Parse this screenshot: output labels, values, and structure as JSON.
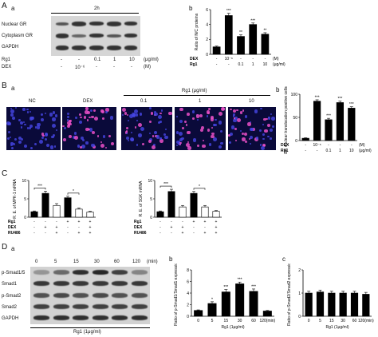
{
  "panelA": {
    "letter": "A",
    "sub_a": "a",
    "sub_b": "b",
    "time": "2h",
    "blot_rows": [
      "Nuclear GR",
      "Cytoplasm GR",
      "GAPDH"
    ],
    "rg1_label": "Rg1",
    "dex_label": "DEX",
    "rg1_vals": [
      "-",
      "-",
      "0.1",
      "1",
      "10"
    ],
    "rg1_unit": "(μg/ml)",
    "dex_vals": [
      "-",
      "10⁻⁶",
      "-",
      "-",
      "-"
    ],
    "dex_unit": "(M)"
  },
  "panelB": {
    "letter": "B",
    "sub_a": "a",
    "sub_b": "b",
    "images": [
      "NC",
      "DEX",
      "0.1",
      "1",
      "10"
    ],
    "rg1_group": "Rg1  (μg/ml)"
  },
  "panelC": {
    "letter": "C"
  },
  "panelD": {
    "letter": "D",
    "sub_a": "a",
    "sub_b": "b",
    "sub_c": "c",
    "times": [
      "0",
      "5",
      "15",
      "30",
      "60",
      "120"
    ],
    "time_unit": "(min)",
    "blot_rows": [
      "p-Smad1/5",
      "Smad1",
      "p-Smad2",
      "Smad2",
      "GAPDH"
    ],
    "treatment": "Rg1 (1μg/ml)"
  },
  "chart_data": [
    {
      "id": "Ab",
      "type": "bar",
      "ylabel": "Ratio of N/C proteins",
      "ylim": [
        0,
        6
      ],
      "yticks": [
        "0",
        "2",
        "4",
        "6"
      ],
      "values": [
        1.0,
        5.2,
        2.4,
        4.0,
        2.7
      ],
      "errors": [
        0.1,
        0.3,
        0.2,
        0.2,
        0.2
      ],
      "stars": [
        "",
        "***",
        "**",
        "***",
        "**"
      ],
      "rows": [
        {
          "label": "DEX",
          "vals": [
            "-",
            "10⁻⁶",
            "-",
            "-",
            "-"
          ],
          "unit": "(M)"
        },
        {
          "label": "Rg1",
          "vals": [
            "-",
            "-",
            "0.1",
            "1",
            "10"
          ],
          "unit": "(μg/ml)"
        }
      ]
    },
    {
      "id": "Bb",
      "type": "bar",
      "ylabel": "GR nuclear translocation positive cells(%)",
      "ylim": [
        0,
        100
      ],
      "yticks": [
        "0",
        "50",
        "100"
      ],
      "values": [
        5,
        85,
        45,
        82,
        70
      ],
      "errors": [
        1,
        3,
        3,
        3,
        3
      ],
      "stars": [
        "",
        "***",
        "***",
        "***",
        "***"
      ],
      "rows": [
        {
          "label": "DEX",
          "vals": [
            "-",
            "10⁻⁶",
            "-",
            "-",
            "-"
          ],
          "unit": "(M)"
        },
        {
          "label": "Rg1",
          "vals": [
            "-",
            "-",
            "0.1",
            "1",
            "10"
          ],
          "unit": "(μg/ml)"
        }
      ]
    },
    {
      "id": "C1",
      "type": "bar",
      "ylabel": "R. E. of MPK-1 mRNA",
      "ylim": [
        0,
        10
      ],
      "yticks": [
        "0",
        "5",
        "10"
      ],
      "values": [
        1.5,
        6.5,
        3.2,
        5.3,
        2.2,
        1.4
      ],
      "errors": [
        0.2,
        0.6,
        0.5,
        0.4,
        0.3,
        0.2
      ],
      "brackets": [
        {
          "from": 0,
          "to": 1,
          "label": "***"
        },
        {
          "from": 3,
          "to": 4,
          "label": "*"
        }
      ],
      "rows": [
        {
          "label": "Rg1",
          "vals": [
            "-",
            "-",
            "-",
            "+",
            "+",
            "+"
          ]
        },
        {
          "label": "DEX",
          "vals": [
            "-",
            "+",
            "+",
            "-",
            "-",
            "+"
          ]
        },
        {
          "label": "RU486",
          "vals": [
            "-",
            "-",
            "+",
            "-",
            "+",
            "+"
          ]
        }
      ]
    },
    {
      "id": "C2",
      "type": "bar",
      "ylabel": "R. E. of SGK mRNA",
      "ylim": [
        0,
        10
      ],
      "yticks": [
        "0",
        "5",
        "10"
      ],
      "values": [
        1.5,
        7.0,
        2.8,
        6.5,
        2.8,
        1.6
      ],
      "errors": [
        0.2,
        0.6,
        0.4,
        0.5,
        0.4,
        0.2
      ],
      "brackets": [
        {
          "from": 0,
          "to": 1,
          "label": "***"
        },
        {
          "from": 3,
          "to": 4,
          "label": "*"
        }
      ],
      "rows": [
        {
          "label": "Rg1",
          "vals": [
            "-",
            "-",
            "-",
            "+",
            "+",
            "+"
          ]
        },
        {
          "label": "DEX",
          "vals": [
            "-",
            "+",
            "+",
            "-",
            "-",
            "+"
          ]
        },
        {
          "label": "RU486",
          "vals": [
            "-",
            "-",
            "+",
            "-",
            "+",
            "+"
          ]
        }
      ]
    },
    {
      "id": "Db",
      "type": "bar",
      "ylabel": "Ratio of p-Smad1/Smad1 expression",
      "ylim": [
        0,
        8
      ],
      "yticks": [
        "0",
        "2",
        "4",
        "6",
        "8"
      ],
      "categories": [
        "0",
        "5",
        "15",
        "30",
        "60",
        "120(min)"
      ],
      "values": [
        1.0,
        2.2,
        4.2,
        5.6,
        4.3,
        0.9
      ],
      "errors": [
        0.1,
        0.3,
        0.4,
        0.3,
        0.4,
        0.1
      ],
      "stars": [
        "",
        "*",
        "***",
        "***",
        "***",
        ""
      ],
      "xlabel": "Rg1 (1μg/ml)"
    },
    {
      "id": "Dc",
      "type": "bar",
      "ylabel": "Ratio of p-Smad2/Smad2 expression",
      "ylim": [
        0,
        2
      ],
      "yticks": [
        "0",
        "1",
        "2"
      ],
      "categories": [
        "0",
        "5",
        "15",
        "30",
        "60",
        "120(min)"
      ],
      "values": [
        1.0,
        1.05,
        1.0,
        1.0,
        1.0,
        0.95
      ],
      "errors": [
        0.08,
        0.08,
        0.08,
        0.08,
        0.08,
        0.08
      ],
      "stars": [
        "",
        "",
        "",
        "",
        "",
        ""
      ],
      "xlabel": "Rg1 (1μg/ml)"
    }
  ]
}
